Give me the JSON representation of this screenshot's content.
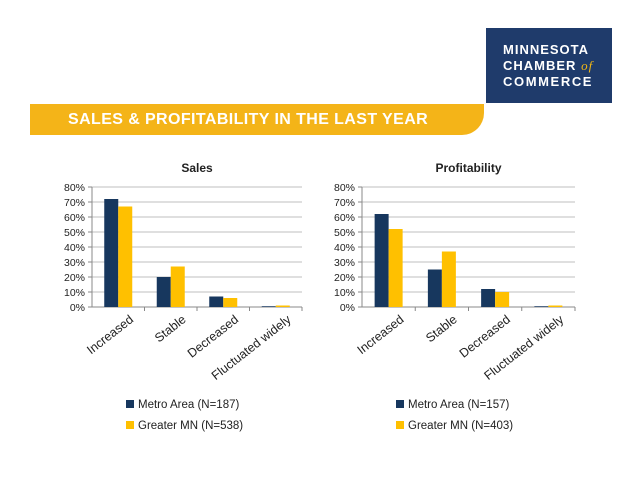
{
  "logo": {
    "line1": "MINNESOTA",
    "line2": "CHAMBER",
    "line2_suffix": "of",
    "line3": "COMMERCE"
  },
  "banner": {
    "title": "SALES & PROFITABILITY IN THE LAST YEAR"
  },
  "colors": {
    "navy": "#1f3b6b",
    "gold": "#f4b418",
    "metro": "#17375e",
    "greater": "#ffc000",
    "grid": "#bfbfbf"
  },
  "chart_data": [
    {
      "type": "bar",
      "title": "Sales",
      "categories": [
        "Increased",
        "Stable",
        "Decreased",
        "Fluctuated widely"
      ],
      "ylim": [
        0,
        80
      ],
      "yticks": [
        "0%",
        "10%",
        "20%",
        "30%",
        "40%",
        "50%",
        "60%",
        "70%",
        "80%"
      ],
      "grid": true,
      "legend": "bottom",
      "series": [
        {
          "name": "Metro Area (N=187)",
          "values": [
            72,
            20,
            7,
            0.5
          ]
        },
        {
          "name": "Greater MN (N=538)",
          "values": [
            67,
            27,
            6,
            1
          ]
        }
      ]
    },
    {
      "type": "bar",
      "title": "Profitability",
      "categories": [
        "Increased",
        "Stable",
        "Decreased",
        "Fluctuated widely"
      ],
      "ylim": [
        0,
        80
      ],
      "yticks": [
        "0%",
        "10%",
        "20%",
        "30%",
        "40%",
        "50%",
        "60%",
        "70%",
        "80%"
      ],
      "grid": true,
      "legend": "bottom",
      "series": [
        {
          "name": "Metro Area (N=157)",
          "values": [
            62,
            25,
            12,
            0.5
          ]
        },
        {
          "name": "Greater MN (N=403)",
          "values": [
            52,
            37,
            10,
            1
          ]
        }
      ]
    }
  ]
}
